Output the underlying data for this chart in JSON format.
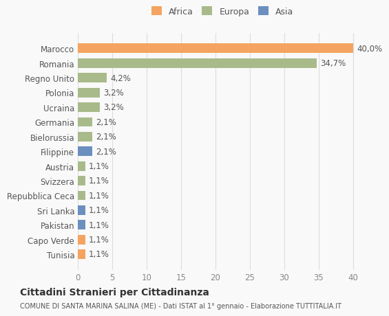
{
  "categories": [
    "Tunisia",
    "Capo Verde",
    "Pakistan",
    "Sri Lanka",
    "Repubblica Ceca",
    "Svizzera",
    "Austria",
    "Filippine",
    "Bielorussia",
    "Germania",
    "Ucraina",
    "Polonia",
    "Regno Unito",
    "Romania",
    "Marocco"
  ],
  "values": [
    1.1,
    1.1,
    1.1,
    1.1,
    1.1,
    1.1,
    1.1,
    2.1,
    2.1,
    2.1,
    3.2,
    3.2,
    4.2,
    34.7,
    40.0
  ],
  "labels": [
    "1,1%",
    "1,1%",
    "1,1%",
    "1,1%",
    "1,1%",
    "1,1%",
    "1,1%",
    "2,1%",
    "2,1%",
    "2,1%",
    "3,2%",
    "3,2%",
    "4,2%",
    "34,7%",
    "40,0%"
  ],
  "continents": [
    "Africa",
    "Africa",
    "Asia",
    "Asia",
    "Europa",
    "Europa",
    "Europa",
    "Asia",
    "Europa",
    "Europa",
    "Europa",
    "Europa",
    "Europa",
    "Europa",
    "Africa"
  ],
  "colors": {
    "Africa": "#F4A460",
    "Europa": "#A8BA8A",
    "Asia": "#6B8FBF"
  },
  "legend_colors": {
    "Africa": "#F4A460",
    "Europa": "#A8BA8A",
    "Asia": "#6B8FBF"
  },
  "xlim": [
    0,
    42
  ],
  "xticks": [
    0,
    5,
    10,
    15,
    20,
    25,
    30,
    35,
    40
  ],
  "title": "Cittadini Stranieri per Cittadinanza",
  "subtitle": "COMUNE DI SANTA MARINA SALINA (ME) - Dati ISTAT al 1° gennaio - Elaborazione TUTTITALIA.IT",
  "background_color": "#f9f9f9",
  "grid_color": "#dddddd",
  "bar_height": 0.65
}
